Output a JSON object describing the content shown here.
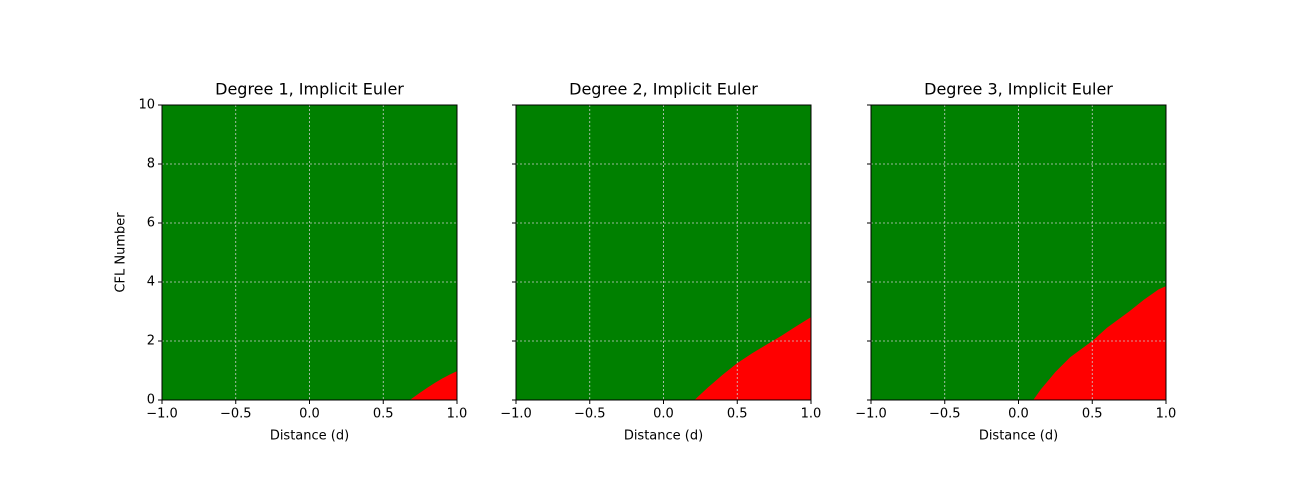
{
  "chart_data": [
    {
      "type": "area",
      "title": "Degree 1, Implicit Euler",
      "xlabel": "Distance (d)",
      "ylabel": "CFL Number",
      "x": [
        0.68,
        0.75,
        0.8,
        0.85,
        0.9,
        0.95,
        1.0
      ],
      "values": [
        0,
        0.25,
        0.42,
        0.58,
        0.73,
        0.86,
        0.98
      ],
      "color": "#ff0000",
      "background": "#008000",
      "xlim": [
        -1,
        1
      ],
      "ylim": [
        0,
        10
      ],
      "xticks": [
        {
          "value": -1,
          "label": "−1.0"
        },
        {
          "value": -0.5,
          "label": "−0.5"
        },
        {
          "value": 0,
          "label": "0.0"
        },
        {
          "value": 0.5,
          "label": "0.5"
        },
        {
          "value": 1,
          "label": "1.0"
        }
      ],
      "yticks": [
        0,
        2,
        4,
        6,
        8,
        10
      ],
      "grid": true
    },
    {
      "type": "area",
      "title": "Degree 2, Implicit Euler",
      "xlabel": "Distance (d)",
      "x": [
        0.21,
        0.3,
        0.4,
        0.5,
        0.6,
        0.7,
        0.8,
        0.9,
        1.0
      ],
      "values": [
        0,
        0.42,
        0.85,
        1.25,
        1.58,
        1.88,
        2.18,
        2.5,
        2.81
      ],
      "color": "#ff0000",
      "background": "#008000",
      "xlim": [
        -1,
        1
      ],
      "sharey": true,
      "xticks": [
        {
          "value": -1,
          "label": "−1.0"
        },
        {
          "value": -0.5,
          "label": "−0.5"
        },
        {
          "value": 0,
          "label": "0.0"
        },
        {
          "value": 0.5,
          "label": "0.5"
        },
        {
          "value": 1,
          "label": "1.0"
        }
      ],
      "grid": true
    },
    {
      "type": "area",
      "title": "Degree 3, Implicit Euler",
      "xlabel": "Distance (d)",
      "x": [
        0.1,
        0.15,
        0.25,
        0.35,
        0.5,
        0.6,
        0.75,
        0.85,
        0.95,
        1.0
      ],
      "values": [
        0,
        0.35,
        0.95,
        1.45,
        2.0,
        2.45,
        3.0,
        3.4,
        3.75,
        3.86
      ],
      "color": "#ff0000",
      "background": "#008000",
      "xlim": [
        -1,
        1
      ],
      "sharey": true,
      "xticks": [
        {
          "value": -1,
          "label": "−1.0"
        },
        {
          "value": -0.5,
          "label": "−0.5"
        },
        {
          "value": 0,
          "label": "0.0"
        },
        {
          "value": 0.5,
          "label": "0.5"
        },
        {
          "value": 1,
          "label": "1.0"
        }
      ],
      "grid": true
    }
  ]
}
